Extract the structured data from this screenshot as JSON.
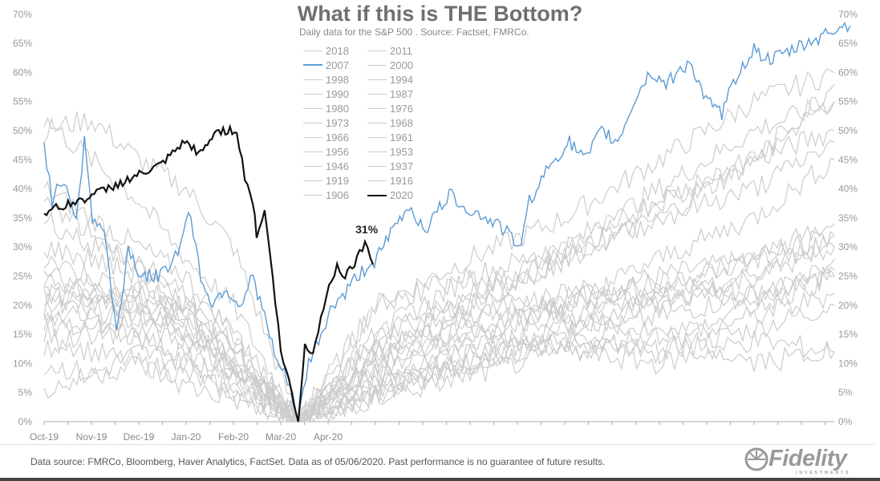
{
  "chart_data": {
    "type": "line",
    "title": "What if this is THE Bottom?",
    "subtitle": "Daily data for the S&P 500 .  Source: Factset, FMRCo.",
    "xlabel": "",
    "ylabel": "",
    "x_unit": "months since Oct-19",
    "xlim": [
      0,
      16.7
    ],
    "ylim": [
      0,
      70
    ],
    "yticks": [
      "0%",
      "5%",
      "10%",
      "15%",
      "20%",
      "25%",
      "30%",
      "35%",
      "40%",
      "45%",
      "50%",
      "55%",
      "60%",
      "65%",
      "70%"
    ],
    "xticks": [
      "Oct-19",
      "Nov-19",
      "Dec-19",
      "Jan-20",
      "Feb-20",
      "Mar-20",
      "Apr-20"
    ],
    "grid": false,
    "legend_placement": "top-center",
    "annotation": {
      "text": "31%",
      "x": 6.85,
      "y": 31
    },
    "highlight_series": [
      {
        "name": "2020",
        "color": "#111111",
        "x": [
          0,
          0.76,
          1.61,
          2.46,
          2.97,
          3.31,
          3.64,
          4.07,
          4.24,
          4.41,
          4.49,
          4.66,
          4.83,
          5.0,
          5.17,
          5.37,
          5.51,
          5.68,
          5.85,
          6.02,
          6.19,
          6.36,
          6.61,
          6.78,
          6.95
        ],
        "y": [
          36,
          38,
          41,
          44,
          48,
          46,
          50,
          50,
          42,
          38,
          32,
          36,
          25,
          12,
          7,
          0,
          13,
          12,
          18,
          23,
          27,
          25,
          28,
          31,
          27
        ]
      },
      {
        "name": "2007",
        "color": "#5b9bd5",
        "x": [
          0,
          0.17,
          0.42,
          0.68,
          0.85,
          1.02,
          1.27,
          1.53,
          1.78,
          2.03,
          2.46,
          2.88,
          3.05,
          3.31,
          3.56,
          3.81,
          4.15,
          4.41,
          4.66,
          4.92,
          5.08,
          5.25,
          5.37,
          5.59,
          5.85,
          6.1,
          6.36,
          6.61,
          7.03,
          7.37,
          7.71,
          8.05,
          8.56,
          9.07,
          9.58,
          10.08,
          10.25,
          10.76,
          11.1,
          11.44,
          11.78,
          12.12,
          12.46,
          12.8,
          13.14,
          13.64,
          13.98,
          14.32,
          14.66,
          15.0,
          15.34,
          15.85,
          16.36,
          16.86,
          17.03
        ],
        "y": [
          48,
          38,
          42,
          35,
          48,
          35,
          33,
          15,
          30,
          25,
          25,
          30,
          37,
          25,
          20,
          23,
          20,
          25,
          18,
          10,
          8,
          5,
          0,
          10,
          15,
          20,
          22,
          25,
          28,
          33,
          37,
          33,
          39,
          36,
          34,
          30,
          38,
          45,
          48,
          45,
          50,
          48,
          55,
          60,
          58,
          62,
          55,
          53,
          60,
          64,
          62,
          64,
          66,
          68,
          68
        ]
      }
    ],
    "gray_x": [
      0,
      1,
      2,
      3,
      4,
      5.37,
      7,
      9,
      11,
      13,
      15,
      16.7
    ],
    "gray_series": [
      {
        "name": "2018",
        "values": [
          20,
          22,
          18,
          15,
          10,
          0,
          12,
          18,
          22,
          25,
          28,
          30
        ]
      },
      {
        "name": "2011",
        "values": [
          18,
          15,
          20,
          17,
          8,
          0,
          8,
          14,
          20,
          24,
          22,
          26
        ]
      },
      {
        "name": "2000",
        "values": [
          22,
          20,
          24,
          18,
          12,
          0,
          6,
          10,
          14,
          12,
          16,
          20
        ]
      },
      {
        "name": "1998",
        "values": [
          50,
          52,
          45,
          40,
          30,
          0,
          20,
          28,
          35,
          45,
          55,
          60
        ]
      },
      {
        "name": "1994",
        "values": [
          15,
          12,
          10,
          8,
          5,
          0,
          6,
          10,
          14,
          18,
          22,
          25
        ]
      },
      {
        "name": "1990",
        "values": [
          40,
          35,
          30,
          25,
          15,
          0,
          15,
          25,
          30,
          40,
          50,
          55
        ]
      },
      {
        "name": "1987",
        "values": [
          52,
          45,
          38,
          28,
          20,
          0,
          15,
          22,
          28,
          35,
          45,
          50
        ]
      },
      {
        "name": "1980",
        "values": [
          25,
          22,
          18,
          20,
          12,
          0,
          10,
          22,
          30,
          38,
          45,
          58
        ]
      },
      {
        "name": "1976",
        "values": [
          10,
          8,
          12,
          10,
          6,
          0,
          5,
          12,
          18,
          22,
          20,
          28
        ]
      },
      {
        "name": "1973",
        "values": [
          20,
          24,
          22,
          18,
          10,
          0,
          8,
          16,
          12,
          10,
          14,
          12
        ]
      },
      {
        "name": "1968",
        "values": [
          12,
          16,
          14,
          10,
          8,
          0,
          12,
          18,
          22,
          20,
          25,
          30
        ]
      },
      {
        "name": "1966",
        "values": [
          30,
          28,
          25,
          20,
          14,
          0,
          10,
          15,
          20,
          28,
          35,
          45
        ]
      },
      {
        "name": "1961",
        "values": [
          5,
          8,
          10,
          6,
          4,
          0,
          4,
          8,
          12,
          15,
          18,
          22
        ]
      },
      {
        "name": "1956",
        "values": [
          28,
          25,
          22,
          18,
          10,
          0,
          8,
          12,
          16,
          20,
          25,
          32
        ]
      },
      {
        "name": "1953",
        "values": [
          18,
          20,
          16,
          14,
          10,
          0,
          10,
          16,
          20,
          24,
          28,
          34
        ]
      },
      {
        "name": "1946",
        "values": [
          35,
          30,
          28,
          22,
          15,
          0,
          5,
          10,
          15,
          12,
          20,
          25
        ]
      },
      {
        "name": "1937",
        "values": [
          38,
          32,
          26,
          20,
          12,
          0,
          20,
          25,
          18,
          15,
          10,
          12
        ]
      },
      {
        "name": "1919",
        "values": [
          16,
          18,
          20,
          14,
          8,
          0,
          12,
          20,
          28,
          35,
          40,
          48
        ]
      },
      {
        "name": "1916",
        "values": [
          22,
          18,
          14,
          12,
          6,
          0,
          4,
          10,
          16,
          22,
          28,
          32
        ]
      },
      {
        "name": "1906",
        "values": [
          26,
          22,
          20,
          15,
          10,
          0,
          15,
          20,
          28,
          38,
          45,
          55
        ]
      }
    ],
    "legend": [
      "2018",
      "2011",
      "2007",
      "2000",
      "1998",
      "1994",
      "1990",
      "1987",
      "1980",
      "1976",
      "1973",
      "1968",
      "1966",
      "1961",
      "1956",
      "1953",
      "1946",
      "1937",
      "1919",
      "1916",
      "1906",
      "2020"
    ],
    "gray_color": "#cccccc"
  },
  "footer": {
    "source": "Data source: FMRCo, Bloomberg, Haver Analytics, FactSet. Data as of 05/06/2020. Past performance is no guarantee of future results.",
    "logo": "Fidelity",
    "logo_sub": "INVESTMENTS"
  }
}
